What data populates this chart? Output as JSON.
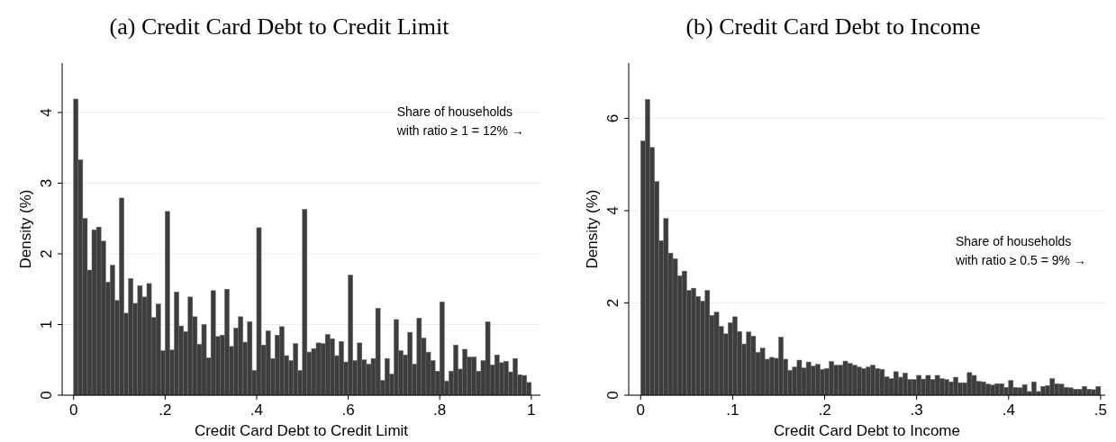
{
  "chart_data": [
    {
      "type": "histogram",
      "title": "(a) Credit Card Debt to Credit Limit",
      "xlabel": "Credit Card Debt to Credit Limit",
      "ylabel": "Density (%)",
      "color": "#3d3d3d",
      "bins": [
        0,
        0.01,
        0.02,
        0.03,
        0.04,
        0.05,
        0.06,
        0.07,
        0.08,
        0.09,
        0.1,
        0.11,
        0.12,
        0.13,
        0.14,
        0.15,
        0.16,
        0.17,
        0.18,
        0.19,
        0.2,
        0.21,
        0.22,
        0.23,
        0.24,
        0.25,
        0.26,
        0.27,
        0.28,
        0.29,
        0.3,
        0.31,
        0.32,
        0.33,
        0.34,
        0.35,
        0.36,
        0.37,
        0.38,
        0.39,
        0.4,
        0.41,
        0.42,
        0.43,
        0.44,
        0.45,
        0.46,
        0.47,
        0.48,
        0.49,
        0.5,
        0.51,
        0.52,
        0.53,
        0.54,
        0.55,
        0.56,
        0.57,
        0.58,
        0.59,
        0.6,
        0.61,
        0.62,
        0.63,
        0.64,
        0.65,
        0.66,
        0.67,
        0.68,
        0.69,
        0.7,
        0.71,
        0.72,
        0.73,
        0.74,
        0.75,
        0.76,
        0.77,
        0.78,
        0.79,
        0.8,
        0.81,
        0.82,
        0.83,
        0.84,
        0.85,
        0.86,
        0.87,
        0.88,
        0.89,
        0.9,
        0.91,
        0.92,
        0.93,
        0.94,
        0.95,
        0.96,
        0.97,
        0.98,
        0.99,
        1
      ],
      "values": [
        4.19,
        3.33,
        2.5,
        1.77,
        2.34,
        2.38,
        2.18,
        1.6,
        1.84,
        1.34,
        2.79,
        1.16,
        1.65,
        1.3,
        1.55,
        1.39,
        1.58,
        1.1,
        1.29,
        0.63,
        2.6,
        0.64,
        1.46,
        0.98,
        0.9,
        1.39,
        1.11,
        0.72,
        1.0,
        0.53,
        1.48,
        0.83,
        0.85,
        1.5,
        0.69,
        0.95,
        1.11,
        0.75,
        1.04,
        0.35,
        2.37,
        0.71,
        0.91,
        0.52,
        0.85,
        0.97,
        0.56,
        0.49,
        0.73,
        0.35,
        2.63,
        0.61,
        0.66,
        0.74,
        0.73,
        0.86,
        0.8,
        0.56,
        0.76,
        0.47,
        1.7,
        0.49,
        0.74,
        0.5,
        0.44,
        0.52,
        1.23,
        0.21,
        0.52,
        0.3,
        1.07,
        0.63,
        0.57,
        0.89,
        0.44,
        1.09,
        0.81,
        0.61,
        0.49,
        0.34,
        1.32,
        0.2,
        0.34,
        0.71,
        0.37,
        0.65,
        0.54,
        0.54,
        0.34,
        0.49,
        1.04,
        0.43,
        0.57,
        0.46,
        0.48,
        0.33,
        0.52,
        0.29,
        0.28,
        0.18
      ],
      "xlim": [
        -0.025,
        1.02
      ],
      "xticks": [
        {
          "value": 0,
          "label": "0"
        },
        {
          "value": 0.2,
          "label": ".2"
        },
        {
          "value": 0.4,
          "label": ".4"
        },
        {
          "value": 0.6,
          "label": ".6"
        },
        {
          "value": 0.8,
          "label": ".8"
        },
        {
          "value": 1,
          "label": "1"
        }
      ],
      "ylim": [
        0,
        4.7
      ],
      "yticks": [
        0,
        1,
        2,
        3,
        4
      ],
      "grid": "y",
      "annotations": [
        "Share of households\nwith ratio ≥ 1 = 12%  →"
      ]
    },
    {
      "type": "histogram",
      "title": "(b) Credit Card Debt to Income",
      "xlabel": "Credit Card Debt to Income",
      "ylabel": "Density (%)",
      "color": "#3d3d3d",
      "bins": [
        0,
        0.005,
        0.01,
        0.015,
        0.02,
        0.025,
        0.03,
        0.035,
        0.04,
        0.045,
        0.05,
        0.055,
        0.06,
        0.065,
        0.07,
        0.075,
        0.08,
        0.085,
        0.09,
        0.095,
        0.1,
        0.105,
        0.11,
        0.115,
        0.12,
        0.125,
        0.13,
        0.135,
        0.14,
        0.145,
        0.15,
        0.155,
        0.16,
        0.165,
        0.17,
        0.175,
        0.18,
        0.185,
        0.19,
        0.195,
        0.2,
        0.205,
        0.21,
        0.215,
        0.22,
        0.225,
        0.23,
        0.235,
        0.24,
        0.245,
        0.25,
        0.255,
        0.26,
        0.265,
        0.27,
        0.275,
        0.28,
        0.285,
        0.29,
        0.295,
        0.3,
        0.305,
        0.31,
        0.315,
        0.32,
        0.325,
        0.33,
        0.335,
        0.34,
        0.345,
        0.35,
        0.355,
        0.36,
        0.365,
        0.37,
        0.375,
        0.38,
        0.385,
        0.39,
        0.395,
        0.4,
        0.405,
        0.41,
        0.415,
        0.42,
        0.425,
        0.43,
        0.435,
        0.44,
        0.445,
        0.45,
        0.455,
        0.46,
        0.465,
        0.47,
        0.475,
        0.48,
        0.485,
        0.49,
        0.495,
        0.5
      ],
      "values": [
        5.51,
        6.41,
        5.37,
        4.63,
        3.35,
        3.83,
        3.08,
        2.96,
        2.59,
        2.69,
        2.27,
        2.32,
        2.14,
        2.04,
        2.27,
        1.73,
        1.8,
        1.49,
        1.33,
        1.57,
        1.7,
        1.38,
        1.11,
        1.37,
        1.28,
        0.93,
        1.02,
        0.78,
        0.82,
        0.8,
        1.26,
        0.78,
        0.54,
        0.61,
        0.76,
        0.59,
        0.72,
        0.63,
        0.67,
        0.56,
        0.58,
        0.73,
        0.65,
        0.65,
        0.74,
        0.69,
        0.65,
        0.61,
        0.58,
        0.61,
        0.65,
        0.58,
        0.56,
        0.4,
        0.36,
        0.51,
        0.39,
        0.48,
        0.34,
        0.34,
        0.43,
        0.35,
        0.43,
        0.34,
        0.43,
        0.36,
        0.34,
        0.29,
        0.39,
        0.27,
        0.27,
        0.49,
        0.43,
        0.3,
        0.29,
        0.24,
        0.22,
        0.25,
        0.25,
        0.17,
        0.32,
        0.17,
        0.16,
        0.23,
        0.08,
        0.29,
        0.08,
        0.19,
        0.21,
        0.36,
        0.25,
        0.24,
        0.17,
        0.16,
        0.13,
        0.13,
        0.19,
        0.13,
        0.12,
        0.19
      ],
      "xlim": [
        -0.013,
        0.505
      ],
      "xticks": [
        {
          "value": 0,
          "label": "0"
        },
        {
          "value": 0.1,
          "label": ".1"
        },
        {
          "value": 0.2,
          "label": ".2"
        },
        {
          "value": 0.3,
          "label": ".3"
        },
        {
          "value": 0.4,
          "label": ".4"
        },
        {
          "value": 0.5,
          "label": ".5"
        }
      ],
      "ylim": [
        0,
        7.2
      ],
      "yticks": [
        0,
        2,
        4,
        6
      ],
      "grid": "y",
      "annotations": [
        "Share of households\nwith ratio ≥ 0.5 = 9%  →"
      ]
    }
  ]
}
